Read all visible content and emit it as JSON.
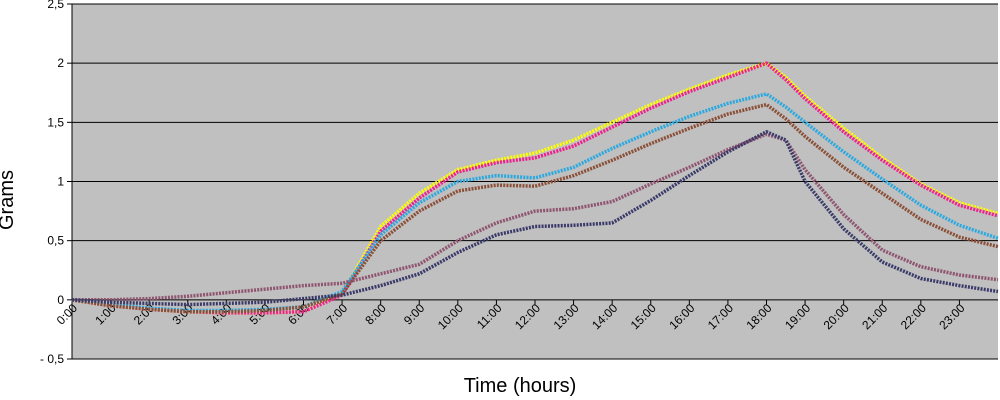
{
  "chart_data": {
    "type": "line",
    "title": "",
    "xlabel": "Time (hours)",
    "ylabel": "Grams",
    "xlim": [
      0,
      24
    ],
    "ylim": [
      -0.5,
      2.5
    ],
    "grid": "horizontal",
    "legend": "none",
    "plot_background": "#c0c0c0",
    "x_tick_labels": [
      "0:00",
      "1:00",
      "2:00",
      "3:00",
      "4:00",
      "5:00",
      "6:00",
      "7:00",
      "8:00",
      "9:00",
      "10:00",
      "11:00",
      "12:00",
      "13:00",
      "14:00",
      "15:00",
      "16:00",
      "17:00",
      "18:00",
      "19:00",
      "20:00",
      "21:00",
      "22:00",
      "23:00"
    ],
    "y_ticks": [
      {
        "value": -0.5,
        "label": "- 0,5"
      },
      {
        "value": 0,
        "label": "0"
      },
      {
        "value": 0.5,
        "label": "0,5"
      },
      {
        "value": 1,
        "label": "1"
      },
      {
        "value": 1.5,
        "label": "1,5"
      },
      {
        "value": 2,
        "label": "2"
      },
      {
        "value": 2.5,
        "label": "2,5"
      }
    ],
    "x": [
      0,
      1,
      2,
      3,
      4,
      5,
      6,
      7,
      8,
      9,
      10,
      11,
      12,
      13,
      14,
      15,
      16,
      17,
      18,
      18.5,
      19,
      20,
      21,
      22,
      23,
      24
    ],
    "series": [
      {
        "color": "#ffff00",
        "values": [
          0,
          -0.05,
          -0.08,
          -0.1,
          -0.11,
          -0.11,
          -0.1,
          0.05,
          0.62,
          0.9,
          1.1,
          1.18,
          1.24,
          1.35,
          1.5,
          1.65,
          1.78,
          1.9,
          2.0,
          1.88,
          1.72,
          1.45,
          1.2,
          0.98,
          0.82,
          0.73
        ]
      },
      {
        "color": "#ee1f8f",
        "values": [
          0,
          -0.05,
          -0.08,
          -0.1,
          -0.11,
          -0.11,
          -0.1,
          0.04,
          0.58,
          0.86,
          1.08,
          1.16,
          1.2,
          1.3,
          1.46,
          1.62,
          1.76,
          1.88,
          2.0,
          1.86,
          1.7,
          1.42,
          1.18,
          0.97,
          0.8,
          0.71
        ]
      },
      {
        "color": "#2aa9e0",
        "values": [
          0,
          -0.04,
          -0.07,
          -0.09,
          -0.09,
          -0.08,
          -0.06,
          0.07,
          0.55,
          0.82,
          1.0,
          1.05,
          1.03,
          1.12,
          1.28,
          1.42,
          1.55,
          1.66,
          1.74,
          1.63,
          1.5,
          1.25,
          1.02,
          0.8,
          0.63,
          0.52
        ]
      },
      {
        "color": "#8b4f37",
        "values": [
          0,
          -0.05,
          -0.08,
          -0.1,
          -0.1,
          -0.09,
          -0.06,
          0.05,
          0.5,
          0.75,
          0.92,
          0.97,
          0.96,
          1.05,
          1.18,
          1.32,
          1.45,
          1.57,
          1.65,
          1.53,
          1.38,
          1.12,
          0.9,
          0.68,
          0.53,
          0.45
        ]
      },
      {
        "color": "#8f5470",
        "values": [
          0,
          0.0,
          0.01,
          0.03,
          0.06,
          0.09,
          0.12,
          0.14,
          0.22,
          0.3,
          0.5,
          0.65,
          0.75,
          0.77,
          0.83,
          0.98,
          1.12,
          1.27,
          1.4,
          1.35,
          1.1,
          0.72,
          0.42,
          0.28,
          0.21,
          0.17
        ]
      },
      {
        "color": "#3a3a6a",
        "values": [
          0,
          -0.02,
          -0.03,
          -0.04,
          -0.03,
          -0.02,
          0.01,
          0.04,
          0.12,
          0.22,
          0.4,
          0.55,
          0.62,
          0.63,
          0.65,
          0.84,
          1.05,
          1.25,
          1.42,
          1.35,
          1.0,
          0.6,
          0.32,
          0.18,
          0.12,
          0.07
        ]
      }
    ]
  }
}
